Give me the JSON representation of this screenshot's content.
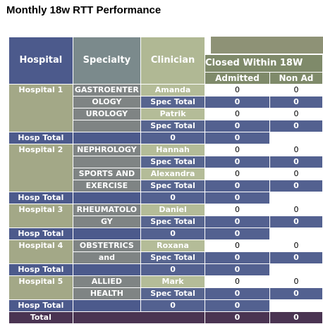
{
  "page": {
    "title": "Monthly 18w RTT Performance"
  },
  "header": {
    "hospital": "Hospital",
    "specialty": "Specialty",
    "clinician": "Clinician",
    "closed_within": "Closed Within 18W",
    "admitted": "Admitted",
    "non_admitted": "Non Ad"
  },
  "labels": {
    "spec_total": "Spec Total",
    "hosp_total": "Hosp Total",
    "grand_total": "Total"
  },
  "hospitals": [
    {
      "name": "Hospital 1",
      "specialties": [
        {
          "line1": "GASTROENTER",
          "line2": "OLOGY",
          "clinician": "Amanda",
          "admitted": "0",
          "non_admitted": "0",
          "spec_admitted": "0",
          "spec_non_admitted": "0"
        },
        {
          "line1": "UROLOGY",
          "line2": "",
          "clinician": "Patrik",
          "admitted": "0",
          "non_admitted": "0",
          "spec_admitted": "0",
          "spec_non_admitted": "0"
        }
      ],
      "hosp_admitted": "0",
      "hosp_non_admitted": "0"
    },
    {
      "name": "Hospital 2",
      "specialties": [
        {
          "line1": "NEPHROLOGY",
          "line2": "",
          "clinician": "Hannah",
          "admitted": "0",
          "non_admitted": "0",
          "spec_admitted": "0",
          "spec_non_admitted": "0"
        },
        {
          "line1": "SPORTS AND",
          "line2": "EXERCISE",
          "clinician": "Alexandra",
          "admitted": "0",
          "non_admitted": "0",
          "spec_admitted": "0",
          "spec_non_admitted": "0"
        }
      ],
      "hosp_admitted": "0",
      "hosp_non_admitted": "0"
    },
    {
      "name": "Hospital 3",
      "specialties": [
        {
          "line1": "RHEUMATOLO",
          "line2": "GY",
          "clinician": "Daniel",
          "admitted": "0",
          "non_admitted": "0",
          "spec_admitted": "0",
          "spec_non_admitted": "0"
        }
      ],
      "hosp_admitted": "0",
      "hosp_non_admitted": "0"
    },
    {
      "name": "Hospital 4",
      "specialties": [
        {
          "line1": "OBSTETRICS",
          "line2": "and",
          "clinician": "Roxana",
          "admitted": "0",
          "non_admitted": "0",
          "spec_admitted": "0",
          "spec_non_admitted": "0"
        }
      ],
      "hosp_admitted": "0",
      "hosp_non_admitted": "0"
    },
    {
      "name": "Hospital 5",
      "specialties": [
        {
          "line1": "ALLIED",
          "line2": "HEALTH",
          "clinician": "Mark",
          "admitted": "0",
          "non_admitted": "0",
          "spec_admitted": "0",
          "spec_non_admitted": "0"
        }
      ],
      "hosp_admitted": "0",
      "hosp_non_admitted": "0"
    }
  ],
  "grand_total": {
    "admitted": "0",
    "non_admitted": "0"
  },
  "colors": {
    "hospital_header": "#4c5a8c",
    "specialty_header": "#7b8a8c",
    "clinician_header": "#b0b894",
    "group_header": "#7f8a6a",
    "hosp_total": "#4c5a8c",
    "grand_total": "#4a3452"
  }
}
